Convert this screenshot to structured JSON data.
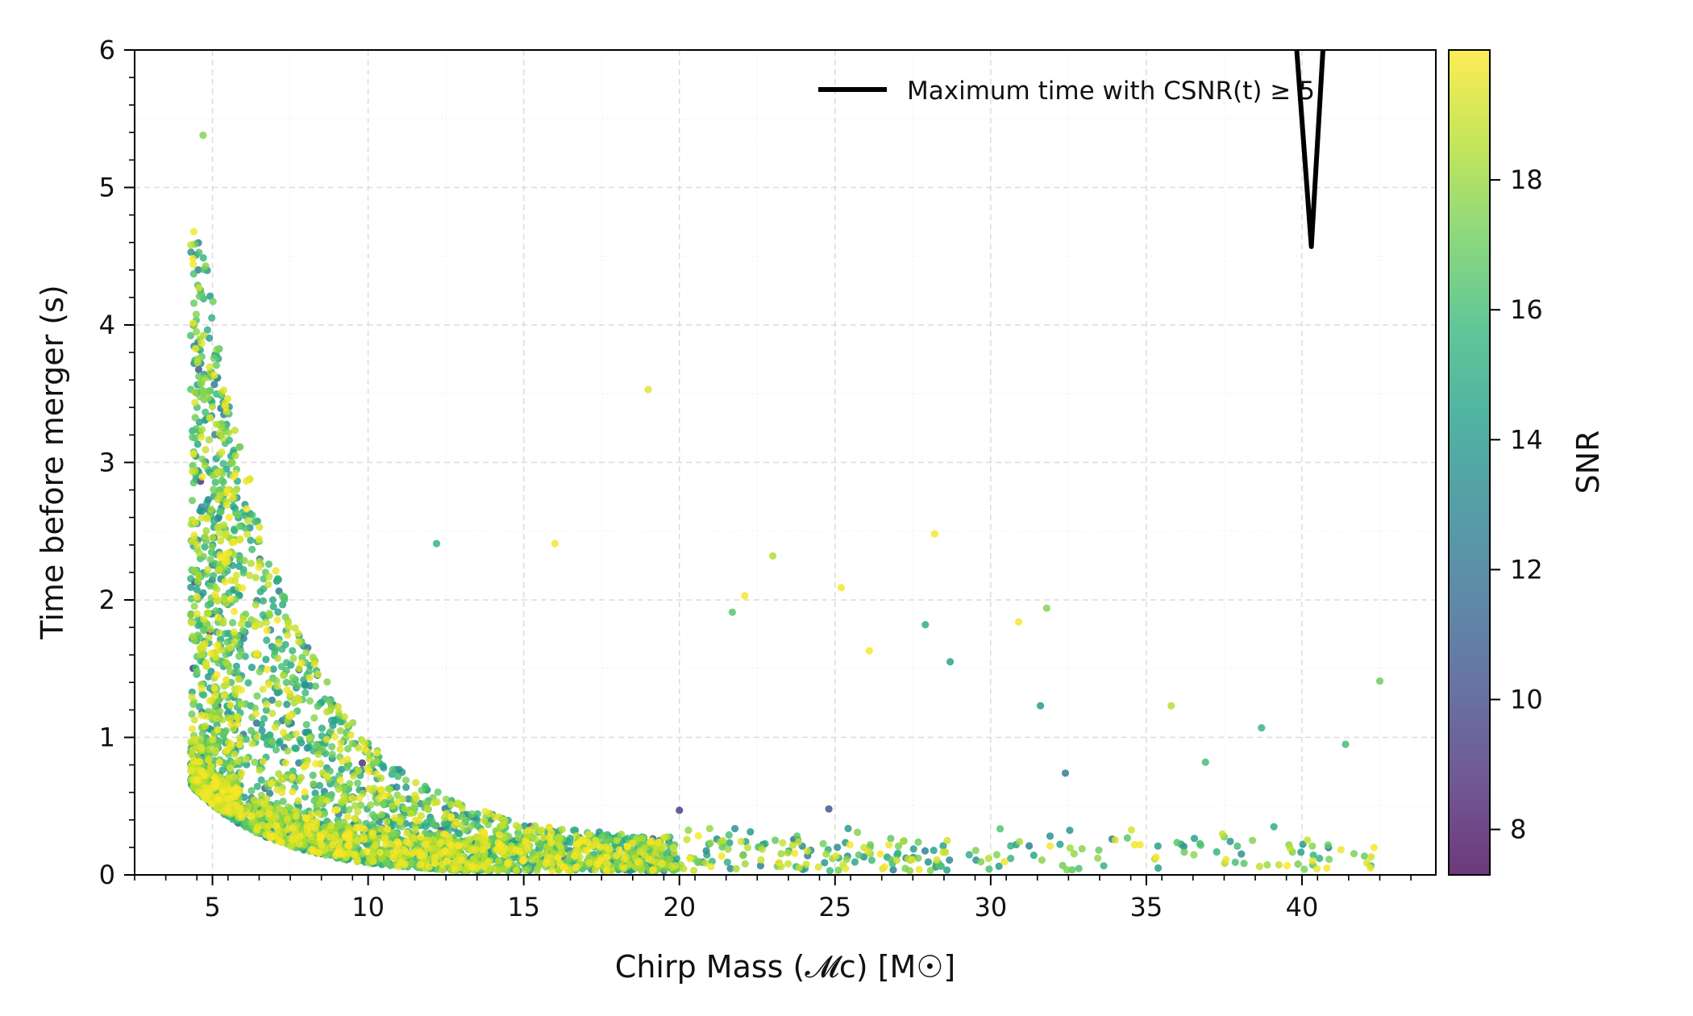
{
  "chart_data": {
    "type": "scatter",
    "title": "",
    "xlabel": "Chirp Mass (𝓜c) [M☉]",
    "ylabel": "Time before merger (s)",
    "xlim": [
      2.5,
      44.3
    ],
    "ylim": [
      0,
      6
    ],
    "x_ticks": [
      5,
      10,
      15,
      20,
      25,
      30,
      35,
      40
    ],
    "x_tick_labels": [
      "5",
      "10",
      "15",
      "20",
      "25",
      "30",
      "35",
      "40"
    ],
    "y_ticks": [
      0,
      1,
      2,
      3,
      4,
      5,
      6
    ],
    "y_tick_labels": [
      "0",
      "1",
      "2",
      "3",
      "4",
      "5",
      "6"
    ],
    "grid": true,
    "colorbar": {
      "label": "SNR",
      "range": [
        7.3,
        20
      ],
      "ticks": [
        8,
        10,
        12,
        14,
        16,
        18
      ],
      "tick_labels": [
        "8",
        "10",
        "12",
        "14",
        "16",
        "18"
      ],
      "colormap": "viridis"
    },
    "legend": {
      "position": "top-right",
      "entries": [
        {
          "label": "Maximum time with CSNR(t) ≥ 5",
          "color": "#000000"
        }
      ]
    },
    "line_series": {
      "name": "Maximum time with CSNR(t) ≥ 5",
      "color": "#000000",
      "x": [
        39.8,
        40.3,
        40.7
      ],
      "y": [
        6.1,
        4.57,
        6.1
      ]
    },
    "point_cloud": {
      "n_points": 3800,
      "x_range": [
        4.3,
        42.5
      ],
      "y_range": [
        0.02,
        5.38
      ],
      "snr_range": [
        7.5,
        20
      ],
      "trend": "time before merger decays roughly exponentially with chirp mass",
      "dense_region_x": [
        4.3,
        18
      ],
      "seed": 7
    },
    "notable_points": [
      {
        "x": 4.7,
        "y": 5.38,
        "snr": 17.5
      },
      {
        "x": 4.4,
        "y": 4.68,
        "snr": 19.8
      },
      {
        "x": 19.0,
        "y": 3.53,
        "snr": 19.5
      },
      {
        "x": 28.2,
        "y": 2.48,
        "snr": 19.8
      },
      {
        "x": 16.0,
        "y": 2.41,
        "snr": 19.8
      },
      {
        "x": 23.0,
        "y": 2.32,
        "snr": 18.5
      },
      {
        "x": 12.2,
        "y": 2.41,
        "snr": 15.5
      },
      {
        "x": 25.2,
        "y": 2.09,
        "snr": 19.8
      },
      {
        "x": 22.1,
        "y": 2.03,
        "snr": 19.8
      },
      {
        "x": 31.8,
        "y": 1.94,
        "snr": 17.5
      },
      {
        "x": 30.9,
        "y": 1.84,
        "snr": 19.8
      },
      {
        "x": 27.9,
        "y": 1.82,
        "snr": 15.0
      },
      {
        "x": 21.7,
        "y": 1.91,
        "snr": 16.5
      },
      {
        "x": 28.7,
        "y": 1.55,
        "snr": 14.5
      },
      {
        "x": 26.1,
        "y": 1.63,
        "snr": 19.8
      },
      {
        "x": 42.5,
        "y": 1.41,
        "snr": 17.0
      },
      {
        "x": 35.8,
        "y": 1.23,
        "snr": 18.5
      },
      {
        "x": 31.6,
        "y": 1.23,
        "snr": 14.0
      },
      {
        "x": 38.7,
        "y": 1.07,
        "snr": 15.5
      },
      {
        "x": 41.4,
        "y": 0.95,
        "snr": 16.0
      },
      {
        "x": 36.9,
        "y": 0.82,
        "snr": 16.0
      },
      {
        "x": 32.4,
        "y": 0.74,
        "snr": 12.5
      },
      {
        "x": 39.1,
        "y": 0.35,
        "snr": 15.0
      },
      {
        "x": 24.8,
        "y": 0.48,
        "snr": 10.5
      },
      {
        "x": 20.0,
        "y": 0.47,
        "snr": 9.5
      },
      {
        "x": 40.8,
        "y": 0.05,
        "snr": 19.8
      },
      {
        "x": 42.2,
        "y": 0.05,
        "snr": 19.8
      },
      {
        "x": 34.8,
        "y": 0.22,
        "snr": 19.8
      }
    ]
  }
}
